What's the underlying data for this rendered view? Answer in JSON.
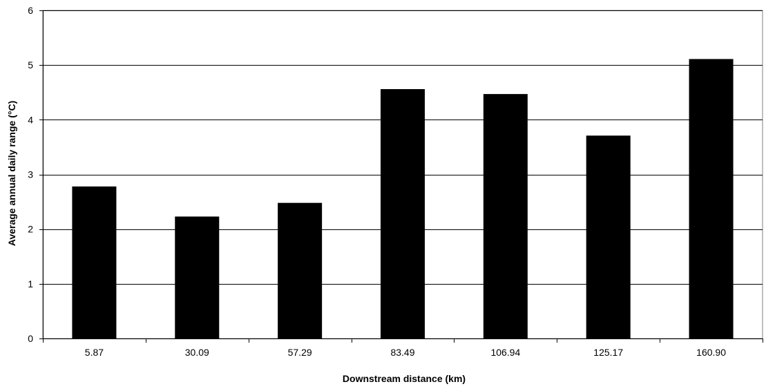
{
  "chart_data": {
    "type": "bar",
    "categories": [
      "5.87",
      "30.09",
      "57.29",
      "83.49",
      "106.94",
      "125.17",
      "160.90"
    ],
    "values": [
      2.78,
      2.23,
      2.48,
      4.56,
      4.47,
      3.71,
      5.11
    ],
    "title": "",
    "xlabel": "Downstream distance (km)",
    "ylabel": "Average annual daily range (°C)",
    "ylim": [
      0,
      6
    ],
    "yticks": [
      "0",
      "1",
      "2",
      "3",
      "4",
      "5",
      "6"
    ],
    "grid": true,
    "legend": "none",
    "bar_color": "#000000"
  }
}
